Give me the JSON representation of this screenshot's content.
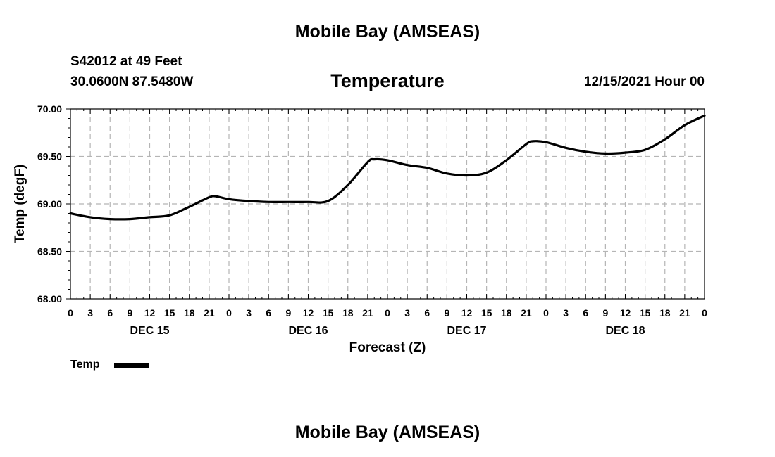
{
  "header": {
    "title": "Mobile Bay (AMSEAS)",
    "station": "S42012 at 49 Feet",
    "coords": "30.0600N  87.5480W",
    "variable": "Temperature",
    "run": "12/15/2021 Hour 00"
  },
  "footer": {
    "title": "Mobile Bay (AMSEAS)"
  },
  "chart_data": {
    "type": "line",
    "title": "Temperature",
    "xlabel": "Forecast (Z)",
    "ylabel": "Temp (degF)",
    "ylim": [
      68.0,
      70.0
    ],
    "xlim": [
      0,
      96
    ],
    "y_ticks": [
      "68.00",
      "68.50",
      "69.00",
      "69.50",
      "70.00"
    ],
    "y_tick_values": [
      68.0,
      68.5,
      69.0,
      69.5,
      70.0
    ],
    "x_tick_labels": [
      "0",
      "3",
      "6",
      "9",
      "12",
      "15",
      "18",
      "21",
      "0",
      "3",
      "6",
      "9",
      "12",
      "15",
      "18",
      "21",
      "0",
      "3",
      "6",
      "9",
      "12",
      "15",
      "18",
      "21",
      "0",
      "3",
      "6",
      "9",
      "12",
      "15",
      "18",
      "21",
      "0"
    ],
    "day_labels": [
      {
        "label": "DEC 15",
        "x": 12
      },
      {
        "label": "DEC 16",
        "x": 36
      },
      {
        "label": "DEC 17",
        "x": 60
      },
      {
        "label": "DEC 18",
        "x": 84
      }
    ],
    "grid": true,
    "legend": "bottom-left",
    "series": [
      {
        "name": "Temp",
        "color": "#000000",
        "x": [
          0,
          3,
          6,
          9,
          12,
          15,
          18,
          21,
          22,
          24,
          27,
          30,
          33,
          36,
          39,
          42,
          45,
          46,
          48,
          51,
          54,
          57,
          60,
          63,
          66,
          69,
          70,
          72,
          75,
          78,
          81,
          84,
          87,
          90,
          93,
          96
        ],
        "values": [
          68.9,
          68.86,
          68.84,
          68.84,
          68.86,
          68.88,
          68.97,
          69.07,
          69.08,
          69.05,
          69.03,
          69.02,
          69.02,
          69.02,
          69.03,
          69.2,
          69.44,
          69.47,
          69.46,
          69.41,
          69.38,
          69.32,
          69.3,
          69.33,
          69.46,
          69.63,
          69.66,
          69.65,
          69.59,
          69.55,
          69.53,
          69.54,
          69.57,
          69.68,
          69.83,
          69.93
        ]
      }
    ]
  }
}
